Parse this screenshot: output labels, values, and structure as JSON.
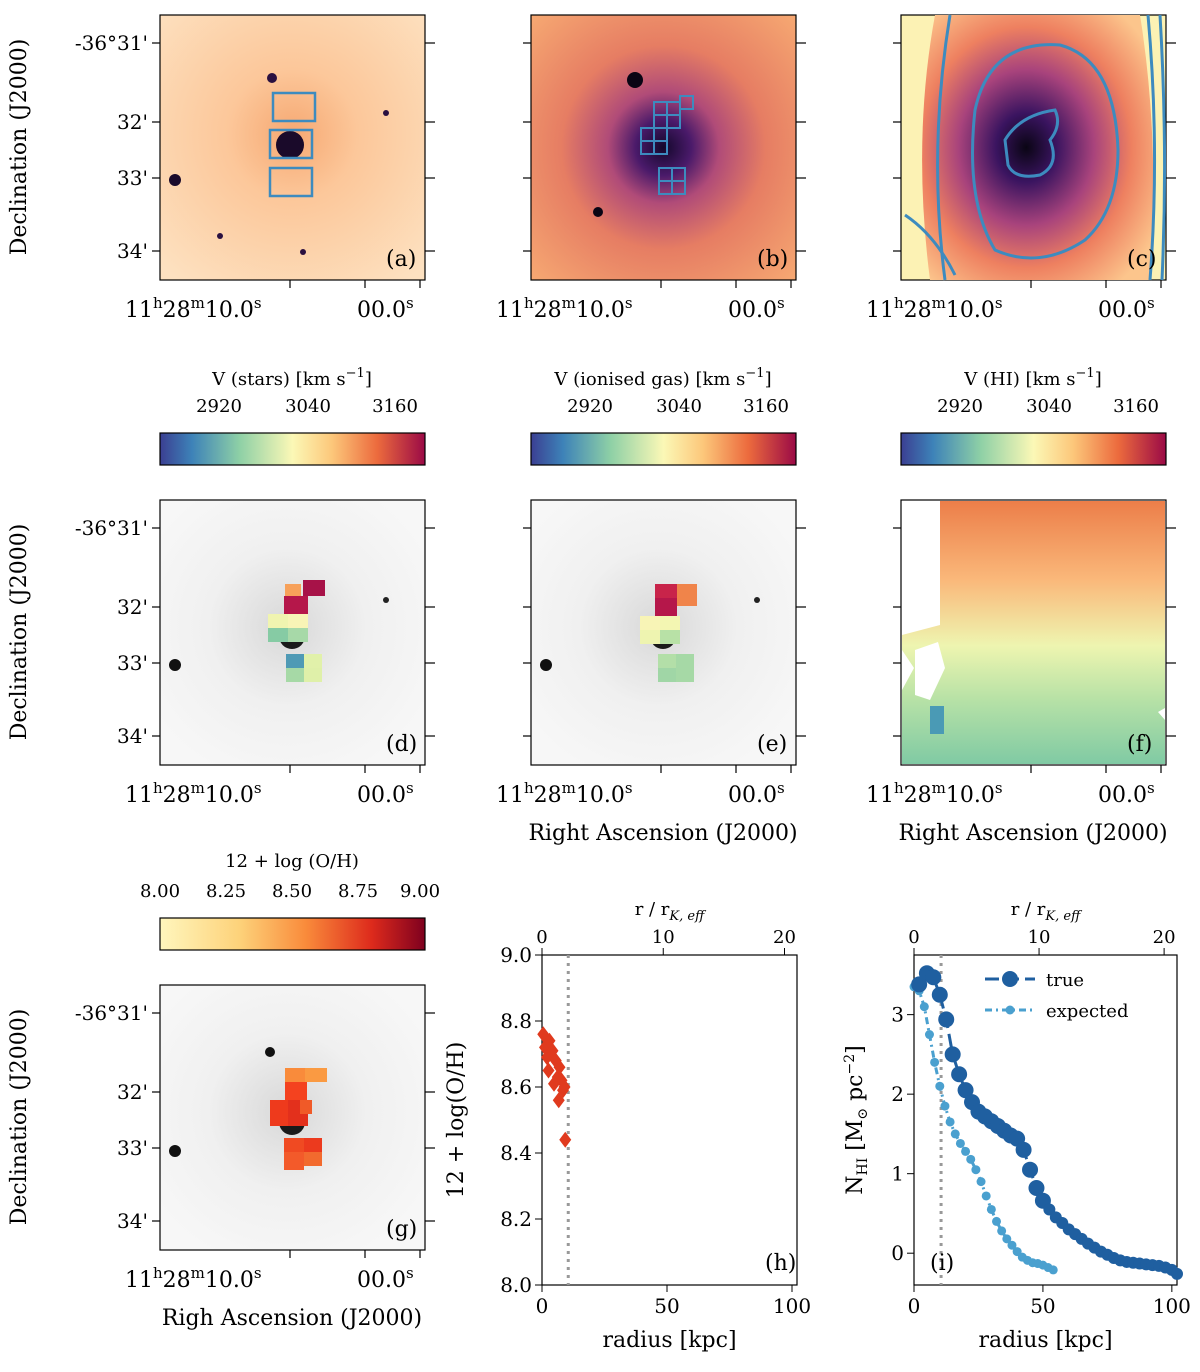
{
  "colors": {
    "box": "#3d8bbf",
    "oh_point": "#e03a1e",
    "true_series": "#1f5fa0",
    "expected_series": "#4aa0cf",
    "dotted_line": "#999999"
  },
  "images": {
    "ylabel": "Declination (J2000)",
    "xlabel_e": "Right Ascension (J2000)",
    "xlabel_f": "Right Ascension (J2000)",
    "xlabel_g": "Righ Ascension (J2000)",
    "dec_ticks": [
      "-36°31'",
      "32'",
      "33'",
      "34'"
    ],
    "ra_tick_major": "11",
    "ra_tick_h": "h",
    "ra_tick_28": "28",
    "ra_tick_m": "m",
    "ra_tick_10": "10.0",
    "ra_tick_s1": "s",
    "ra_tick_00": "00.0",
    "ra_tick_s2": "s",
    "panel_labels": [
      "(a)",
      "(b)",
      "(c)",
      "(d)",
      "(e)",
      "(f)",
      "(g)",
      "(h)",
      "(i)"
    ]
  },
  "colorbars": {
    "stars": {
      "title": "V (stars) [km s",
      "exp": "−1",
      "close": "]",
      "ticks": [
        "2920",
        "3040",
        "3160"
      ]
    },
    "gas": {
      "title": "V (ionised gas) [km s",
      "exp": "−1",
      "close": "]",
      "ticks": [
        "2920",
        "3040",
        "3160"
      ]
    },
    "hi": {
      "title": "V (HI) [km s",
      "exp": "−1",
      "close": "]",
      "ticks": [
        "2920",
        "3040",
        "3160"
      ]
    },
    "oh": {
      "title": "12 + log (O/H)",
      "ticks": [
        "8.00",
        "8.25",
        "8.50",
        "8.75",
        "9.00"
      ]
    }
  },
  "chart_data": [
    {
      "id": "h",
      "type": "scatter",
      "xlabel": "radius [kpc]",
      "ylabel": "12 + log(O/H)",
      "top_xlabel": "r / r",
      "top_xlabel_sub": "K, eff",
      "xlim": [
        0,
        102
      ],
      "ylim": [
        8.0,
        9.0
      ],
      "xticks": [
        0,
        50,
        100
      ],
      "yticks": [
        "8.0",
        "8.2",
        "8.4",
        "8.6",
        "8.8",
        "9.0"
      ],
      "top_ticks": [
        0,
        10,
        20
      ],
      "top_scale_kpc_per_unit": 4.85,
      "vline_x": 10.5,
      "points": [
        [
          0.5,
          8.76
        ],
        [
          1.2,
          8.72
        ],
        [
          2.0,
          8.69
        ],
        [
          3.0,
          8.74
        ],
        [
          2.6,
          8.65
        ],
        [
          4.2,
          8.71
        ],
        [
          5.5,
          8.68
        ],
        [
          6.3,
          8.63
        ],
        [
          4.8,
          8.61
        ],
        [
          7.0,
          8.66
        ],
        [
          7.8,
          8.62
        ],
        [
          8.4,
          8.59
        ],
        [
          6.7,
          8.56
        ],
        [
          9.0,
          8.6
        ],
        [
          9.3,
          8.44
        ]
      ]
    },
    {
      "id": "i",
      "type": "line",
      "xlabel": "radius [kpc]",
      "ylabel_main": "N",
      "ylabel_sub": "HI",
      "ylabel_rest": " [M",
      "ylabel_sun": "⊙",
      "ylabel_unit": " pc",
      "ylabel_exp": "−2",
      "ylabel_close": "]",
      "top_xlabel": "r / r",
      "top_xlabel_sub": "K, eff",
      "xlim": [
        0,
        102
      ],
      "ylim": [
        -0.4,
        3.75
      ],
      "xticks": [
        0,
        50,
        100
      ],
      "yticks": [
        0,
        1,
        2,
        3
      ],
      "top_ticks": [
        0,
        10,
        20
      ],
      "top_scale_kpc_per_unit": 4.85,
      "vline_x": 10.5,
      "legend": [
        "true",
        "expected"
      ],
      "series": [
        {
          "name": "true",
          "x": [
            2,
            5,
            7.5,
            10,
            12.5,
            15,
            17.5,
            20,
            22.5,
            25,
            27.5,
            30,
            32.5,
            35,
            37.5,
            40,
            42.5,
            45,
            47.5,
            50,
            52.5,
            55,
            57.5,
            60,
            62.5,
            65,
            67.5,
            70,
            72.5,
            75,
            77.5,
            80,
            82.5,
            85,
            87.5,
            90,
            92.5,
            95,
            97.5,
            100,
            102
          ],
          "values": [
            3.38,
            3.52,
            3.47,
            3.25,
            2.94,
            2.5,
            2.25,
            2.05,
            1.9,
            1.78,
            1.72,
            1.66,
            1.6,
            1.54,
            1.48,
            1.44,
            1.3,
            1.05,
            0.82,
            0.66,
            0.55,
            0.45,
            0.38,
            0.3,
            0.24,
            0.18,
            0.12,
            0.07,
            0.02,
            -0.02,
            -0.06,
            -0.09,
            -0.11,
            -0.12,
            -0.13,
            -0.14,
            -0.15,
            -0.16,
            -0.18,
            -0.21,
            -0.26
          ]
        },
        {
          "name": "expected",
          "x": [
            0,
            2,
            4,
            6,
            8,
            10,
            12,
            14,
            16,
            18,
            20,
            22,
            24,
            26,
            28,
            30,
            32,
            34,
            36,
            38,
            40,
            42,
            44,
            46,
            48,
            50,
            52,
            54
          ],
          "values": [
            3.35,
            3.3,
            3.1,
            2.75,
            2.4,
            2.1,
            1.85,
            1.65,
            1.5,
            1.38,
            1.28,
            1.18,
            1.05,
            0.9,
            0.72,
            0.55,
            0.4,
            0.28,
            0.18,
            0.1,
            0.02,
            -0.05,
            -0.09,
            -0.12,
            -0.13,
            -0.15,
            -0.18,
            -0.21
          ]
        }
      ]
    }
  ]
}
